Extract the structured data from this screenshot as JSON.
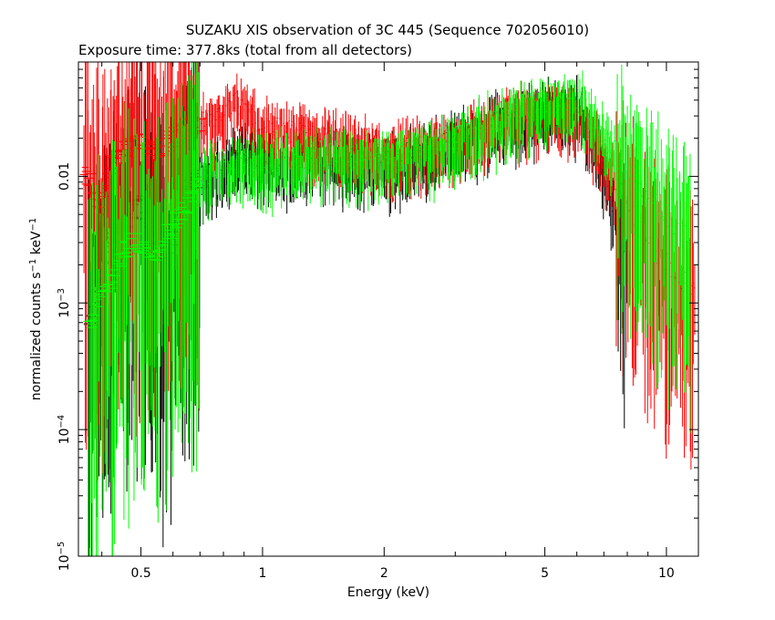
{
  "chart_data": {
    "type": "scatter",
    "title": "SUZAKU XIS observation of 3C 445 (Sequence 702056010)",
    "subtitle": "Exposure time: 377.8ks (total from all detectors)",
    "xlabel": "Energy (keV)",
    "ylabel_main": "normalized counts s",
    "ylabel_exp1": "−1",
    "ylabel_mid": " keV",
    "ylabel_exp2": "−1",
    "x_scale": "log",
    "y_scale": "log",
    "xlim": [
      0.35,
      12.0
    ],
    "ylim": [
      1e-05,
      0.08
    ],
    "x_ticks": [
      {
        "value": 0.5,
        "label": "0.5"
      },
      {
        "value": 1,
        "label": "1"
      },
      {
        "value": 2,
        "label": "2"
      },
      {
        "value": 5,
        "label": "5"
      },
      {
        "value": 10,
        "label": "10"
      }
    ],
    "y_ticks": [
      {
        "value": 0.01,
        "base": "0.01",
        "exp": ""
      },
      {
        "value": 0.001,
        "base": "10",
        "exp": "−3"
      },
      {
        "value": 0.0001,
        "base": "10",
        "exp": "−4"
      },
      {
        "value": 1e-05,
        "base": "10",
        "exp": "−5"
      }
    ],
    "grid": false,
    "legend": "none",
    "series": [
      {
        "color": "#000000",
        "x": [
          0.37,
          0.42,
          0.45,
          0.48,
          0.5,
          0.55,
          0.6,
          0.65,
          0.7,
          0.8,
          0.9,
          1.0,
          1.2,
          1.5,
          2.0,
          2.5,
          3.0,
          3.5,
          4.0,
          4.5,
          5.0,
          5.5,
          6.0,
          6.5,
          7.0,
          7.5,
          8.0
        ],
        "y": [
          0.0007,
          0.003,
          0.004,
          0.005,
          0.006,
          0.0025,
          0.003,
          0.008,
          0.01,
          0.012,
          0.015,
          0.013,
          0.014,
          0.014,
          0.013,
          0.015,
          0.02,
          0.024,
          0.028,
          0.032,
          0.034,
          0.036,
          0.035,
          0.025,
          0.012,
          0.005,
          0.0025
        ]
      },
      {
        "color": "#ff0000",
        "x": [
          0.36,
          0.38,
          0.4,
          0.42,
          0.45,
          0.48,
          0.5,
          0.55,
          0.6,
          0.65,
          0.7,
          0.8,
          0.85,
          0.9,
          1.0,
          1.2,
          1.5,
          2.0,
          2.5,
          3.0,
          3.5,
          4.0,
          4.5,
          5.0,
          5.5,
          6.0,
          6.5,
          7.0,
          7.5,
          8.0,
          8.5,
          9.0,
          10.0,
          11.0,
          11.8
        ],
        "y": [
          0.011,
          0.008,
          0.006,
          0.012,
          0.015,
          0.02,
          0.018,
          0.016,
          0.02,
          0.024,
          0.026,
          0.03,
          0.04,
          0.035,
          0.025,
          0.022,
          0.02,
          0.016,
          0.017,
          0.02,
          0.025,
          0.03,
          0.033,
          0.034,
          0.035,
          0.032,
          0.024,
          0.015,
          0.009,
          0.006,
          0.004,
          0.003,
          0.002,
          0.0015,
          0.0012
        ]
      },
      {
        "color": "#00ff00",
        "x": [
          0.37,
          0.4,
          0.45,
          0.48,
          0.5,
          0.55,
          0.6,
          0.65,
          0.7,
          0.8,
          0.9,
          1.0,
          1.2,
          1.5,
          1.8,
          2.0,
          2.5,
          3.0,
          3.5,
          4.0,
          4.5,
          5.0,
          5.5,
          6.0,
          6.5,
          7.0,
          7.5,
          8.0,
          9.0,
          10.0,
          11.0,
          11.5
        ],
        "y": [
          0.0007,
          0.001,
          0.0025,
          0.003,
          0.003,
          0.0025,
          0.004,
          0.006,
          0.01,
          0.012,
          0.013,
          0.013,
          0.014,
          0.015,
          0.014,
          0.014,
          0.016,
          0.02,
          0.025,
          0.03,
          0.035,
          0.038,
          0.04,
          0.042,
          0.032,
          0.022,
          0.015,
          0.011,
          0.007,
          0.005,
          0.0035,
          0.003
        ]
      }
    ]
  }
}
